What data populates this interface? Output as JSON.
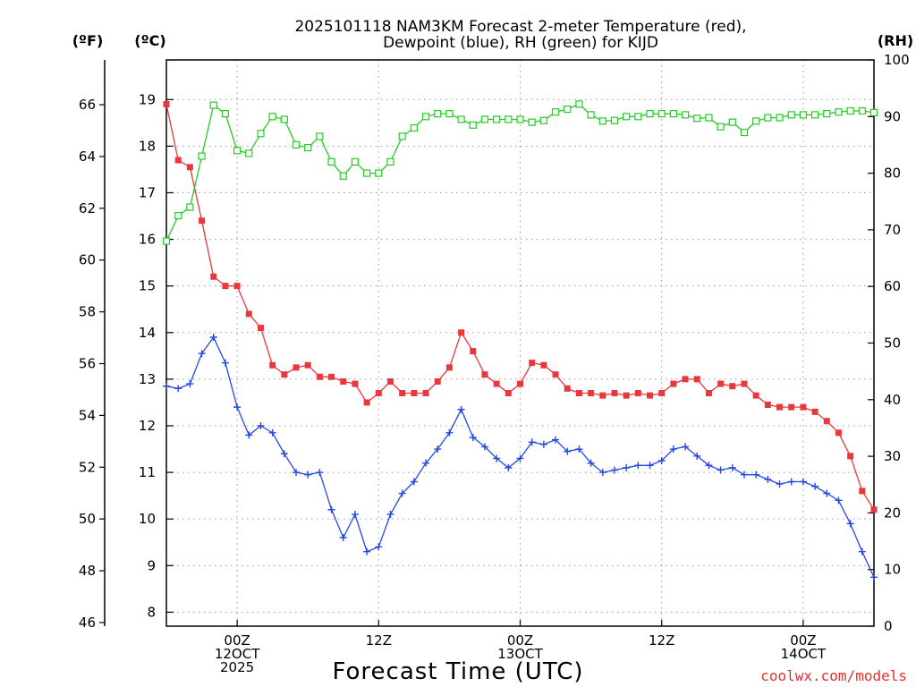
{
  "title_line1": "2025101118 NAM3KM Forecast 2-meter Temperature (red),",
  "title_line2": "Dewpoint (blue), RH (green) for KIJD",
  "unit_f": "(ºF)",
  "unit_c": "(ºC)",
  "unit_rh": "(RH)",
  "xlabel": "Forecast Time (UTC)",
  "credit": "coolwx.com/models",
  "colors": {
    "temp": "#e8383c",
    "dewpoint": "#2448e0",
    "rh": "#22cc22",
    "grid": "#999999"
  },
  "chart_data": {
    "type": "line",
    "x_unit": "forecast hour from 2025-10-11 18Z",
    "x_start": 0,
    "x_step": 1,
    "x_range": [
      0,
      60
    ],
    "x_ticks": [
      {
        "hour": 6,
        "labels": [
          "00Z",
          "12OCT",
          "2025"
        ]
      },
      {
        "hour": 18,
        "labels": [
          "12Z"
        ]
      },
      {
        "hour": 30,
        "labels": [
          "00Z",
          "13OCT"
        ]
      },
      {
        "hour": 42,
        "labels": [
          "12Z"
        ]
      },
      {
        "hour": 54,
        "labels": [
          "00Z",
          "14OCT"
        ]
      }
    ],
    "y_celsius": {
      "range": [
        7.7,
        19.85
      ],
      "ticks": [
        8,
        9,
        10,
        11,
        12,
        13,
        14,
        15,
        16,
        17,
        18,
        19
      ]
    },
    "y_fahrenheit": {
      "range": [
        45.86,
        67.73
      ],
      "ticks": [
        46,
        48,
        50,
        52,
        54,
        56,
        58,
        60,
        62,
        64,
        66
      ]
    },
    "y_rh": {
      "range": [
        0,
        100
      ],
      "ticks": [
        0,
        10,
        20,
        30,
        40,
        50,
        60,
        70,
        80,
        90,
        100
      ]
    },
    "series": [
      {
        "name": "Temperature",
        "axis": "celsius",
        "marker": "filled-square",
        "values": [
          18.9,
          17.7,
          17.55,
          16.4,
          15.2,
          15.0,
          15.0,
          14.4,
          14.1,
          13.3,
          13.1,
          13.25,
          13.3,
          13.05,
          13.05,
          12.95,
          12.9,
          12.5,
          12.7,
          12.95,
          12.7,
          12.7,
          12.7,
          12.95,
          13.25,
          14.0,
          13.6,
          13.1,
          12.9,
          12.7,
          12.9,
          13.35,
          13.3,
          13.1,
          12.8,
          12.7,
          12.7,
          12.65,
          12.7,
          12.65,
          12.7,
          12.65,
          12.7,
          12.9,
          13.0,
          13.0,
          12.7,
          12.9,
          12.85,
          12.9,
          12.65,
          12.45,
          12.4,
          12.4,
          12.4,
          12.3,
          12.1,
          11.85,
          11.35,
          10.6,
          10.2
        ]
      },
      {
        "name": "Dewpoint",
        "axis": "celsius",
        "marker": "plus",
        "values": [
          12.85,
          12.8,
          12.9,
          13.55,
          13.9,
          13.35,
          12.4,
          11.8,
          12.0,
          11.85,
          11.4,
          11.0,
          10.95,
          11.0,
          10.2,
          9.6,
          10.1,
          9.3,
          9.4,
          10.1,
          10.55,
          10.8,
          11.2,
          11.5,
          11.85,
          12.35,
          11.75,
          11.55,
          11.3,
          11.1,
          11.3,
          11.65,
          11.6,
          11.7,
          11.45,
          11.5,
          11.2,
          11.0,
          11.05,
          11.1,
          11.15,
          11.15,
          11.25,
          11.5,
          11.55,
          11.35,
          11.15,
          11.05,
          11.1,
          10.95,
          10.95,
          10.85,
          10.75,
          10.8,
          10.8,
          10.7,
          10.55,
          10.4,
          9.9,
          9.3,
          8.75
        ]
      },
      {
        "name": "RH",
        "axis": "rh",
        "marker": "open-square",
        "values": [
          68,
          72.5,
          74,
          83,
          92,
          90.5,
          84,
          83.5,
          87,
          90,
          89.5,
          85,
          84.5,
          86.5,
          82,
          79.5,
          82,
          80,
          80,
          82,
          86.5,
          88,
          90,
          90.5,
          90.5,
          89.5,
          88.5,
          89.5,
          89.5,
          89.5,
          89.5,
          89,
          89.3,
          90.8,
          91.3,
          92.2,
          90.3,
          89.2,
          89.3,
          90,
          90,
          90.5,
          90.5,
          90.5,
          90.3,
          89.7,
          89.8,
          88.2,
          89,
          87.2,
          89.2,
          89.8,
          89.8,
          90.3,
          90.3,
          90.3,
          90.5,
          90.8,
          91,
          91,
          90.7
        ]
      }
    ]
  }
}
